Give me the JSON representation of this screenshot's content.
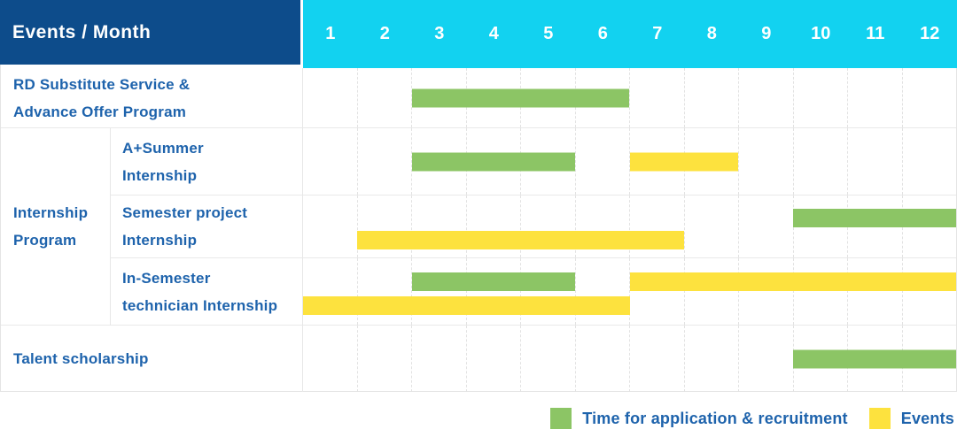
{
  "chart_data": {
    "type": "table",
    "subtype": "gantt",
    "title": "Events / Month",
    "xlabel": "Month",
    "x_ticks": [
      "1",
      "2",
      "3",
      "4",
      "5",
      "6",
      "7",
      "8",
      "9",
      "10",
      "11",
      "12"
    ],
    "x_range_months": [
      1,
      12
    ],
    "series_legend": [
      {
        "key": "application",
        "label": "Time for application & recruitment",
        "color": "#8cc565"
      },
      {
        "key": "events",
        "label": "Events",
        "color": "#fde23e"
      }
    ],
    "groups": [
      {
        "label": "Internship Program",
        "label_lines": [
          "Internship",
          "Program"
        ],
        "rows": [
          1,
          2,
          3
        ]
      }
    ],
    "rows": [
      {
        "group": "",
        "label": "RD Substitute Service & Advance Offer Program",
        "label_lines": [
          "RD Substitute Service &",
          "Advance Offer Program"
        ],
        "lanes": 1,
        "bars": [
          {
            "series": "application",
            "start_month": 3,
            "end_month": 6,
            "lane": 0
          }
        ]
      },
      {
        "group": "Internship Program",
        "label": "A+Summer Internship",
        "label_lines": [
          "A+Summer",
          "Internship"
        ],
        "lanes": 1,
        "bars": [
          {
            "series": "application",
            "start_month": 3,
            "end_month": 5,
            "lane": 0
          },
          {
            "series": "events",
            "start_month": 7,
            "end_month": 8,
            "lane": 0
          }
        ]
      },
      {
        "group": "Internship Program",
        "label": "Semester project Internship",
        "label_lines": [
          "Semester project",
          "Internship"
        ],
        "lanes": 2,
        "bars": [
          {
            "series": "application",
            "start_month": 10,
            "end_month": 12,
            "lane": 0
          },
          {
            "series": "events",
            "start_month": 2,
            "end_month": 7,
            "lane": 1
          }
        ]
      },
      {
        "group": "Internship Program",
        "label": "In-Semester technician Internship",
        "label_lines": [
          "In-Semester",
          "technician Internship"
        ],
        "lanes": 2,
        "bars": [
          {
            "series": "application",
            "start_month": 3,
            "end_month": 5,
            "lane": 0
          },
          {
            "series": "events",
            "start_month": 7,
            "end_month": 12,
            "lane": 0
          },
          {
            "series": "events",
            "start_month": 1,
            "end_month": 6,
            "lane": 1
          }
        ]
      },
      {
        "group": "",
        "label": "Talent scholarship",
        "label_lines": [
          "Talent scholarship"
        ],
        "lanes": 1,
        "bars": [
          {
            "series": "application",
            "start_month": 10,
            "end_month": 12,
            "lane": 0
          }
        ]
      }
    ]
  },
  "colors": {
    "header_navy": "#0d4c8b",
    "header_cyan": "#12d2f0",
    "label_blue": "#1e63ac",
    "application_green": "#8cc565",
    "events_yellow": "#fde23e",
    "gridline": "#e2e2e2"
  }
}
